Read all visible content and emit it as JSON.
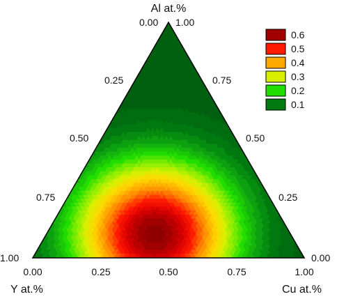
{
  "chart_data": {
    "type": "heatmap",
    "subtype": "ternary-contour",
    "title": "",
    "axes": {
      "top": {
        "label": "Al at.%",
        "ticks": [
          "0.00",
          "0.25",
          "0.50",
          "0.75",
          "1.00"
        ]
      },
      "left": {
        "label": "Y at.%",
        "ticks": [
          "0.00",
          "0.25",
          "0.50",
          "0.75",
          "1.00"
        ]
      },
      "right": {
        "label": "Cu at.%",
        "ticks": [
          "0.00",
          "0.25",
          "0.50",
          "0.75",
          "1.00"
        ]
      },
      "bottom_ticks": [
        "0.00",
        "0.25",
        "0.50",
        "0.75",
        "1.00"
      ],
      "left_edge_ticks": [
        "1.00",
        "0.75",
        "0.50",
        "0.25",
        "0.00"
      ],
      "right_edge_ticks": [
        "1.00",
        "0.75",
        "0.50",
        "0.25",
        "0.00"
      ]
    },
    "peak": {
      "Al": 0.1,
      "Y": 0.5,
      "Cu": 0.4,
      "value": 0.62
    },
    "value_range": [
      0.05,
      0.65
    ],
    "legend": {
      "placement": "top-right",
      "entries": [
        {
          "label": "0.6",
          "color": "#a00000"
        },
        {
          "label": "0.5",
          "color": "#ff1a00"
        },
        {
          "label": "0.4",
          "color": "#ffaa00"
        },
        {
          "label": "0.3",
          "color": "#d8f000"
        },
        {
          "label": "0.2",
          "color": "#22dd00"
        },
        {
          "label": "0.1",
          "color": "#007a10"
        }
      ]
    },
    "colorscale": [
      [
        0.05,
        "#005a10"
      ],
      [
        0.1,
        "#007a10"
      ],
      [
        0.15,
        "#10aa10"
      ],
      [
        0.2,
        "#22dd00"
      ],
      [
        0.25,
        "#88ee00"
      ],
      [
        0.3,
        "#d8f000"
      ],
      [
        0.35,
        "#ffd800"
      ],
      [
        0.4,
        "#ffaa00"
      ],
      [
        0.45,
        "#ff7000"
      ],
      [
        0.5,
        "#ff1a00"
      ],
      [
        0.55,
        "#dd0000"
      ],
      [
        0.6,
        "#a00000"
      ],
      [
        0.65,
        "#7a0000"
      ]
    ]
  }
}
